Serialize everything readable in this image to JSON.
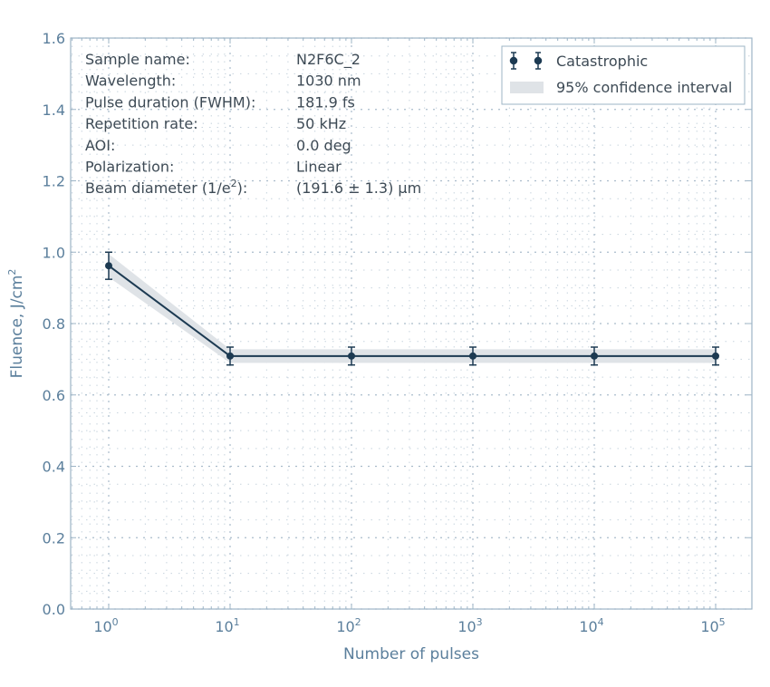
{
  "chart_data": {
    "type": "line",
    "xscale": "log",
    "xlabel": "Number of pulses",
    "ylabel": "Fluence, J/cm",
    "ylabel_sup": "2",
    "xlim": [
      0.5,
      200000
    ],
    "ylim": [
      0.0,
      1.6
    ],
    "yticks": [
      "0.0",
      "0.2",
      "0.4",
      "0.6",
      "0.8",
      "1.0",
      "1.2",
      "1.4",
      "1.6"
    ],
    "ytick_values": [
      0,
      0.2,
      0.4,
      0.6,
      0.8,
      1.0,
      1.2,
      1.4,
      1.6
    ],
    "xtick_exponents": [
      "0",
      "1",
      "2",
      "3",
      "4",
      "5"
    ],
    "xtick_base": "10",
    "grid": true,
    "legend_placement": "top-right",
    "series": [
      {
        "name": "Catastrophic",
        "x": [
          1,
          10,
          100,
          1000,
          10000,
          100000
        ],
        "y": [
          0.962,
          0.709,
          0.709,
          0.709,
          0.709,
          0.709
        ],
        "yerr": [
          0.038,
          0.025,
          0.025,
          0.025,
          0.025,
          0.025
        ],
        "color": "#1c3a52"
      }
    ],
    "confidence_band": {
      "name": "95% confidence interval",
      "x": [
        1,
        10,
        100,
        1000,
        10000,
        100000
      ],
      "lower": [
        0.93,
        0.69,
        0.69,
        0.69,
        0.69,
        0.69
      ],
      "upper": [
        0.995,
        0.728,
        0.728,
        0.728,
        0.728,
        0.728
      ],
      "color": "#dfe3e7"
    },
    "info_table": [
      {
        "label": "Sample name:",
        "value": "N2F6C_2"
      },
      {
        "label": "Wavelength:",
        "value": "1030 nm"
      },
      {
        "label": "Pulse duration (FWHM):",
        "value": "181.9 fs"
      },
      {
        "label": "Repetition rate:",
        "value": "50 kHz"
      },
      {
        "label": "AOI:",
        "value": "0.0 deg"
      },
      {
        "label": "Polarization:",
        "value": "Linear"
      },
      {
        "label": "Beam diameter (1/e",
        "label_sup": "2",
        "label_end": "):",
        "value": "(191.6 ± 1.3) µm"
      }
    ]
  }
}
